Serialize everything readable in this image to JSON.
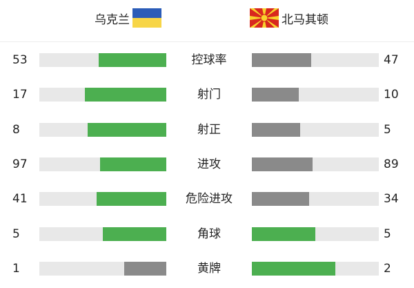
{
  "colors": {
    "leader": "#4caf50",
    "trailer": "#8a8a8a",
    "track": "#e8e8e8"
  },
  "home": {
    "name": "乌克兰",
    "flag": "ukraine-flag-icon"
  },
  "away": {
    "name": "北马其顿",
    "flag": "north-macedonia-flag-icon"
  },
  "stats": [
    {
      "label": "控球率",
      "home": "53",
      "away": "47",
      "home_fill": 0.53,
      "away_fill": 0.47,
      "home_color": "leader",
      "away_color": "trailer"
    },
    {
      "label": "射门",
      "home": "17",
      "away": "10",
      "home_fill": 0.64,
      "away_fill": 0.37,
      "home_color": "leader",
      "away_color": "trailer"
    },
    {
      "label": "射正",
      "home": "8",
      "away": "5",
      "home_fill": 0.62,
      "away_fill": 0.38,
      "home_color": "leader",
      "away_color": "trailer"
    },
    {
      "label": "进攻",
      "home": "97",
      "away": "89",
      "home_fill": 0.52,
      "away_fill": 0.48,
      "home_color": "leader",
      "away_color": "trailer"
    },
    {
      "label": "危险进攻",
      "home": "41",
      "away": "34",
      "home_fill": 0.55,
      "away_fill": 0.45,
      "home_color": "leader",
      "away_color": "trailer"
    },
    {
      "label": "角球",
      "home": "5",
      "away": "5",
      "home_fill": 0.5,
      "away_fill": 0.5,
      "home_color": "leader",
      "away_color": "leader"
    },
    {
      "label": "黄牌",
      "home": "1",
      "away": "2",
      "home_fill": 0.33,
      "away_fill": 0.66,
      "home_color": "trailer",
      "away_color": "leader"
    }
  ]
}
